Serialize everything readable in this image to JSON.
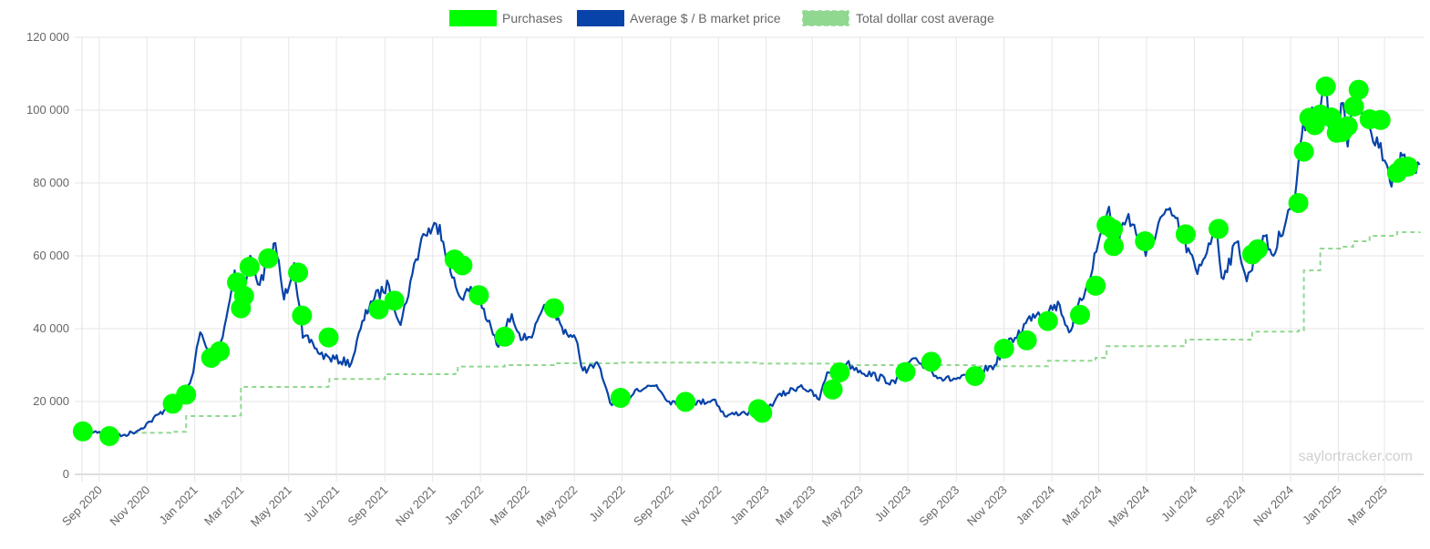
{
  "chart_data": {
    "type": "line",
    "grid": true,
    "legend_position": "top",
    "watermark": "saylortracker.com",
    "colors": {
      "purchases": "#00ff00",
      "market_price": "#0743a8",
      "cost_average": "#90d890",
      "grid": "#e6e6e6"
    },
    "y_ticks": [
      "0",
      "20 000",
      "40 000",
      "60 000",
      "80 000",
      "100 000",
      "120 000"
    ],
    "ylim": [
      0,
      120000
    ],
    "x_range": [
      "2020-08-10",
      "2025-04-20"
    ],
    "x_ticks": [
      {
        "label": "Sep 2020",
        "date": "2020-09-01"
      },
      {
        "label": "Nov 2020",
        "date": "2020-11-01"
      },
      {
        "label": "Jan 2021",
        "date": "2021-01-01"
      },
      {
        "label": "Mar 2021",
        "date": "2021-03-01"
      },
      {
        "label": "May 2021",
        "date": "2021-05-01"
      },
      {
        "label": "Jul 2021",
        "date": "2021-07-01"
      },
      {
        "label": "Sep 2021",
        "date": "2021-09-01"
      },
      {
        "label": "Nov 2021",
        "date": "2021-11-01"
      },
      {
        "label": "Jan 2022",
        "date": "2022-01-01"
      },
      {
        "label": "Mar 2022",
        "date": "2022-03-01"
      },
      {
        "label": "May 2022",
        "date": "2022-05-01"
      },
      {
        "label": "Jul 2022",
        "date": "2022-07-01"
      },
      {
        "label": "Sep 2022",
        "date": "2022-09-01"
      },
      {
        "label": "Nov 2022",
        "date": "2022-11-01"
      },
      {
        "label": "Jan 2023",
        "date": "2023-01-01"
      },
      {
        "label": "Mar 2023",
        "date": "2023-03-01"
      },
      {
        "label": "May 2023",
        "date": "2023-05-01"
      },
      {
        "label": "Jul 2023",
        "date": "2023-07-01"
      },
      {
        "label": "Sep 2023",
        "date": "2023-09-01"
      },
      {
        "label": "Nov 2023",
        "date": "2023-11-01"
      },
      {
        "label": "Jan 2024",
        "date": "2024-01-01"
      },
      {
        "label": "Mar 2024",
        "date": "2024-03-01"
      },
      {
        "label": "May 2024",
        "date": "2024-05-01"
      },
      {
        "label": "Jul 2024",
        "date": "2024-07-01"
      },
      {
        "label": "Sep 2024",
        "date": "2024-09-01"
      },
      {
        "label": "Nov 2024",
        "date": "2024-11-01"
      },
      {
        "label": "Jan 2025",
        "date": "2025-01-01"
      },
      {
        "label": "Mar 2025",
        "date": "2025-03-01"
      }
    ],
    "series": [
      {
        "name": "Purchases",
        "kind": "points",
        "points": [
          [
            "2020-08-11",
            11800
          ],
          [
            "2020-09-14",
            10500
          ],
          [
            "2020-12-04",
            19400
          ],
          [
            "2020-12-21",
            21900
          ],
          [
            "2021-01-22",
            32000
          ],
          [
            "2021-02-02",
            33800
          ],
          [
            "2021-02-24",
            52700
          ],
          [
            "2021-03-01",
            45600
          ],
          [
            "2021-03-05",
            49000
          ],
          [
            "2021-03-12",
            57000
          ],
          [
            "2021-04-05",
            59300
          ],
          [
            "2021-05-13",
            55400
          ],
          [
            "2021-05-18",
            43600
          ],
          [
            "2021-06-21",
            37600
          ],
          [
            "2021-08-24",
            45300
          ],
          [
            "2021-09-13",
            47700
          ],
          [
            "2021-11-29",
            59000
          ],
          [
            "2021-12-09",
            57400
          ],
          [
            "2021-12-30",
            49200
          ],
          [
            "2022-02-01",
            37800
          ],
          [
            "2022-04-05",
            45600
          ],
          [
            "2022-06-29",
            21000
          ],
          [
            "2022-09-20",
            19900
          ],
          [
            "2022-12-22",
            17900
          ],
          [
            "2022-12-27",
            16900
          ],
          [
            "2023-03-27",
            23300
          ],
          [
            "2023-04-05",
            28000
          ],
          [
            "2023-06-28",
            28100
          ],
          [
            "2023-07-31",
            30900
          ],
          [
            "2023-09-25",
            27000
          ],
          [
            "2023-11-01",
            34500
          ],
          [
            "2023-11-30",
            36800
          ],
          [
            "2023-12-27",
            42100
          ],
          [
            "2024-02-06",
            43800
          ],
          [
            "2024-02-26",
            51800
          ],
          [
            "2024-03-11",
            68400
          ],
          [
            "2024-03-19",
            67300
          ],
          [
            "2024-03-20",
            62700
          ],
          [
            "2024-04-29",
            64000
          ],
          [
            "2024-06-20",
            65900
          ],
          [
            "2024-08-01",
            67400
          ],
          [
            "2024-09-13",
            60400
          ],
          [
            "2024-09-20",
            61800
          ],
          [
            "2024-11-11",
            74500
          ],
          [
            "2024-11-18",
            88600
          ],
          [
            "2024-11-25",
            97900
          ],
          [
            "2024-12-02",
            95900
          ],
          [
            "2024-12-09",
            98800
          ],
          [
            "2024-12-16",
            106500
          ],
          [
            "2024-12-23",
            98000
          ],
          [
            "2024-12-30",
            93800
          ],
          [
            "2025-01-06",
            94000
          ],
          [
            "2025-01-13",
            95600
          ],
          [
            "2025-01-21",
            101000
          ],
          [
            "2025-01-27",
            105600
          ],
          [
            "2025-02-10",
            97500
          ],
          [
            "2025-02-24",
            97300
          ],
          [
            "2025-03-17",
            82800
          ],
          [
            "2025-03-24",
            84300
          ],
          [
            "2025-03-31",
            84500
          ]
        ]
      },
      {
        "name": "Average $ / B market price",
        "kind": "line",
        "points": [
          [
            "2020-08-11",
            11500
          ],
          [
            "2020-09-01",
            11700
          ],
          [
            "2020-09-15",
            10400
          ],
          [
            "2020-10-01",
            10700
          ],
          [
            "2020-10-20",
            12000
          ],
          [
            "2020-11-05",
            14500
          ],
          [
            "2020-11-25",
            18000
          ],
          [
            "2020-12-15",
            19500
          ],
          [
            "2020-12-28",
            26500
          ],
          [
            "2021-01-08",
            39000
          ],
          [
            "2021-01-22",
            31000
          ],
          [
            "2021-02-01",
            34000
          ],
          [
            "2021-02-15",
            48000
          ],
          [
            "2021-02-21",
            56000
          ],
          [
            "2021-03-01",
            45000
          ],
          [
            "2021-03-13",
            60000
          ],
          [
            "2021-03-25",
            52000
          ],
          [
            "2021-04-14",
            63500
          ],
          [
            "2021-04-25",
            48000
          ],
          [
            "2021-05-08",
            58000
          ],
          [
            "2021-05-19",
            37500
          ],
          [
            "2021-06-01",
            36000
          ],
          [
            "2021-06-10",
            33000
          ],
          [
            "2021-06-22",
            32000
          ],
          [
            "2021-07-20",
            30500
          ],
          [
            "2021-08-01",
            40000
          ],
          [
            "2021-08-14",
            47500
          ],
          [
            "2021-09-06",
            52000
          ],
          [
            "2021-09-21",
            41000
          ],
          [
            "2021-10-06",
            55000
          ],
          [
            "2021-10-20",
            66000
          ],
          [
            "2021-11-10",
            68500
          ],
          [
            "2021-11-26",
            54000
          ],
          [
            "2021-12-05",
            49000
          ],
          [
            "2021-12-27",
            51000
          ],
          [
            "2022-01-10",
            42000
          ],
          [
            "2022-01-24",
            35000
          ],
          [
            "2022-02-10",
            44000
          ],
          [
            "2022-02-24",
            37000
          ],
          [
            "2022-03-10",
            39000
          ],
          [
            "2022-03-28",
            47000
          ],
          [
            "2022-04-15",
            40500
          ],
          [
            "2022-05-05",
            36000
          ],
          [
            "2022-05-12",
            28500
          ],
          [
            "2022-06-01",
            30000
          ],
          [
            "2022-06-13",
            22000
          ],
          [
            "2022-06-18",
            19000
          ],
          [
            "2022-07-01",
            19500
          ],
          [
            "2022-07-20",
            23500
          ],
          [
            "2022-08-14",
            24500
          ],
          [
            "2022-08-30",
            20000
          ],
          [
            "2022-09-15",
            20000
          ],
          [
            "2022-10-01",
            19500
          ],
          [
            "2022-10-28",
            20500
          ],
          [
            "2022-11-09",
            16000
          ],
          [
            "2022-12-01",
            17000
          ],
          [
            "2022-12-30",
            16500
          ],
          [
            "2023-01-14",
            21000
          ],
          [
            "2023-02-15",
            24500
          ],
          [
            "2023-03-10",
            20500
          ],
          [
            "2023-03-20",
            28000
          ],
          [
            "2023-04-14",
            30500
          ],
          [
            "2023-05-01",
            28500
          ],
          [
            "2023-06-15",
            25000
          ],
          [
            "2023-06-30",
            30500
          ],
          [
            "2023-07-14",
            31000
          ],
          [
            "2023-08-17",
            26000
          ],
          [
            "2023-09-15",
            26500
          ],
          [
            "2023-10-20",
            30000
          ],
          [
            "2023-10-31",
            34500
          ],
          [
            "2023-11-15",
            37500
          ],
          [
            "2023-12-08",
            44000
          ],
          [
            "2024-01-11",
            46500
          ],
          [
            "2024-01-23",
            39000
          ],
          [
            "2024-02-15",
            52000
          ],
          [
            "2024-03-05",
            67000
          ],
          [
            "2024-03-14",
            73500
          ],
          [
            "2024-03-20",
            62000
          ],
          [
            "2024-04-08",
            71500
          ],
          [
            "2024-04-30",
            60000
          ],
          [
            "2024-05-21",
            71000
          ],
          [
            "2024-06-05",
            71000
          ],
          [
            "2024-07-05",
            55000
          ],
          [
            "2024-07-29",
            69000
          ],
          [
            "2024-08-05",
            54000
          ],
          [
            "2024-08-26",
            64000
          ],
          [
            "2024-09-06",
            53000
          ],
          [
            "2024-09-27",
            65500
          ],
          [
            "2024-10-10",
            60000
          ],
          [
            "2024-10-29",
            72500
          ],
          [
            "2024-11-06",
            75000
          ],
          [
            "2024-11-13",
            90000
          ],
          [
            "2024-11-22",
            99000
          ],
          [
            "2024-12-05",
            100000
          ],
          [
            "2024-12-17",
            106000
          ],
          [
            "2024-12-20",
            95000
          ],
          [
            "2024-12-31",
            93500
          ],
          [
            "2025-01-07",
            102000
          ],
          [
            "2025-01-13",
            90000
          ],
          [
            "2025-01-22",
            106000
          ],
          [
            "2025-02-03",
            97000
          ],
          [
            "2025-02-24",
            91000
          ],
          [
            "2025-03-04",
            85000
          ],
          [
            "2025-03-10",
            79000
          ],
          [
            "2025-03-24",
            87500
          ],
          [
            "2025-04-03",
            83000
          ],
          [
            "2025-04-15",
            85000
          ]
        ]
      },
      {
        "name": "Total dollar cost average",
        "kind": "step",
        "points": [
          [
            "2020-10-15",
            11400
          ],
          [
            "2020-12-01",
            11700
          ],
          [
            "2020-12-21",
            16000
          ],
          [
            "2021-02-24",
            16200
          ],
          [
            "2021-03-01",
            24000
          ],
          [
            "2021-06-21",
            24500
          ],
          [
            "2021-06-22",
            26200
          ],
          [
            "2021-09-01",
            27500
          ],
          [
            "2021-11-29",
            27600
          ],
          [
            "2021-12-03",
            29600
          ],
          [
            "2022-02-01",
            30000
          ],
          [
            "2022-04-05",
            30500
          ],
          [
            "2022-06-29",
            30700
          ],
          [
            "2022-12-22",
            30400
          ],
          [
            "2023-04-05",
            30000
          ],
          [
            "2023-09-25",
            29700
          ],
          [
            "2023-12-27",
            31200
          ],
          [
            "2024-02-26",
            32000
          ],
          [
            "2024-03-11",
            35200
          ],
          [
            "2024-06-20",
            37000
          ],
          [
            "2024-09-13",
            39200
          ],
          [
            "2024-11-11",
            39500
          ],
          [
            "2024-11-18",
            56000
          ],
          [
            "2024-12-09",
            62000
          ],
          [
            "2025-01-06",
            62500
          ],
          [
            "2025-01-20",
            64000
          ],
          [
            "2025-02-10",
            65500
          ],
          [
            "2025-03-17",
            66500
          ],
          [
            "2025-04-15",
            66600
          ]
        ]
      }
    ]
  }
}
